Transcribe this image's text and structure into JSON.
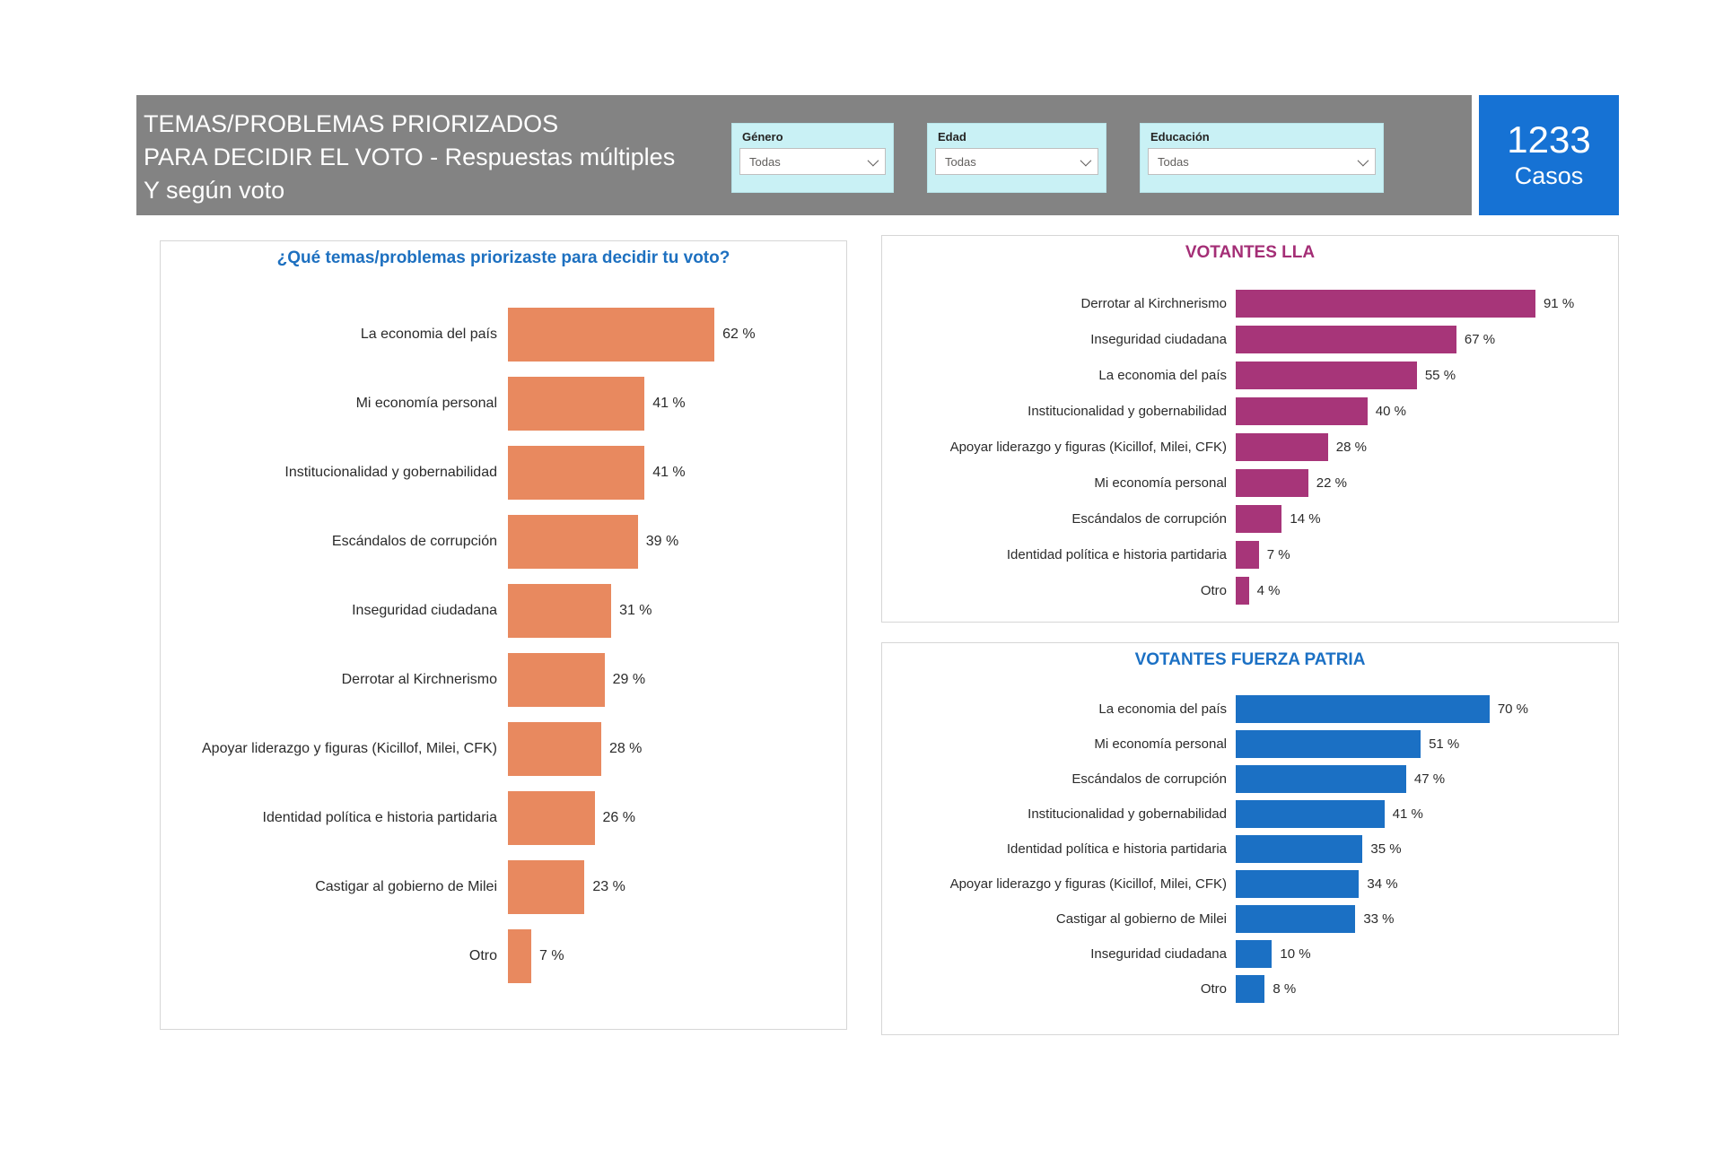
{
  "header": {
    "title_lines": [
      "TEMAS/PROBLEMAS PRIORIZADOS",
      "PARA DECIDIR EL VOTO - Respuestas múltiples",
      "Y según voto"
    ],
    "background_color": "#838383",
    "filters": [
      {
        "label": "Género",
        "value": "Todas"
      },
      {
        "label": "Edad",
        "value": "Todas"
      },
      {
        "label": "Educación",
        "value": "Todas"
      }
    ],
    "cases_card": {
      "number": "1233",
      "label": "Casos",
      "background_color": "#1672d4"
    }
  },
  "chart_data": [
    {
      "id": "general",
      "type": "bar",
      "orientation": "horizontal",
      "title": "¿Qué temas/problemas priorizaste para decidir tu voto?",
      "title_color": "#1d70c0",
      "bar_color": "#e8895f",
      "value_suffix": " %",
      "axis_max": 66,
      "grid": false,
      "legend": false,
      "categories": [
        "La economia del país",
        "Mi economía personal",
        "Institucionalidad y gobernabilidad",
        "Escándalos de corrupción",
        "Inseguridad ciudadana",
        "Derrotar al Kirchnerismo",
        "Apoyar liderazgo y figuras (Kicillof, Milei, CFK)",
        "Identidad política e historia partidaria",
        "Castigar al gobierno de Milei",
        "Otro"
      ],
      "values": [
        62,
        41,
        41,
        39,
        31,
        29,
        28,
        26,
        23,
        7
      ]
    },
    {
      "id": "lla",
      "type": "bar",
      "orientation": "horizontal",
      "title": "VOTANTES LLA",
      "title_color": "#a42e76",
      "bar_color": "#a73579",
      "value_suffix": " %",
      "axis_max": 97,
      "grid": false,
      "legend": false,
      "categories": [
        "Derrotar al Kirchnerismo",
        "Inseguridad ciudadana",
        "La economia del país",
        "Institucionalidad y gobernabilidad",
        "Apoyar liderazgo y figuras (Kicillof, Milei, CFK)",
        "Mi economía personal",
        "Escándalos de corrupción",
        "Identidad política e historia partidaria",
        "Otro"
      ],
      "values": [
        91,
        67,
        55,
        40,
        28,
        22,
        14,
        7,
        4
      ]
    },
    {
      "id": "fuerza_patria",
      "type": "bar",
      "orientation": "horizontal",
      "title": "VOTANTES FUERZA PATRIA",
      "title_color": "#1b70c4",
      "bar_color": "#1b70c4",
      "value_suffix": " %",
      "axis_max": 74,
      "grid": false,
      "legend": false,
      "categories": [
        "La economia del país",
        "Mi economía personal",
        "Escándalos de corrupción",
        "Institucionalidad y gobernabilidad",
        "Identidad política e historia partidaria",
        "Apoyar liderazgo y figuras (Kicillof, Milei, CFK)",
        "Castigar al gobierno de Milei",
        "Inseguridad ciudadana",
        "Otro"
      ],
      "values": [
        70,
        51,
        47,
        41,
        35,
        34,
        33,
        10,
        8
      ]
    }
  ]
}
